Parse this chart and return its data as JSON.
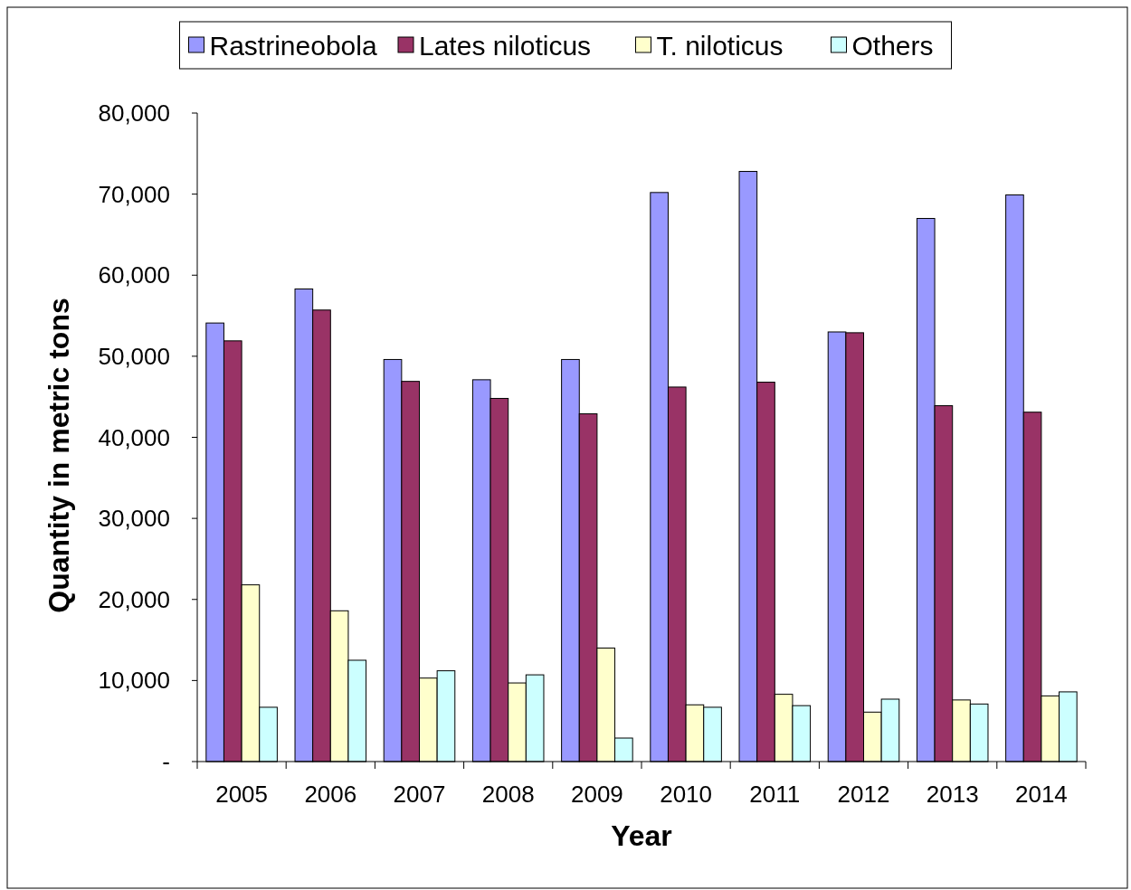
{
  "chart_data": {
    "type": "bar",
    "xlabel": "Year",
    "ylabel": "Quantity in metric tons",
    "categories": [
      "2005",
      "2006",
      "2007",
      "2008",
      "2009",
      "2010",
      "2011",
      "2012",
      "2013",
      "2014"
    ],
    "series": [
      {
        "name": "Rastrineobola",
        "color": "#9999ff",
        "values": [
          54100,
          58300,
          49600,
          47100,
          49600,
          70200,
          72800,
          53000,
          67000,
          69900
        ]
      },
      {
        "name": "Lates niloticus",
        "color": "#993366",
        "values": [
          51900,
          55700,
          46900,
          44800,
          42900,
          46200,
          46800,
          52900,
          43900,
          43100
        ]
      },
      {
        "name": "T. niloticus",
        "color": "#ffffcc",
        "values": [
          21800,
          18600,
          10300,
          9700,
          14000,
          7000,
          8300,
          6100,
          7600,
          8100
        ]
      },
      {
        "name": "Others",
        "color": "#ccffff",
        "values": [
          6700,
          12500,
          11200,
          10700,
          2900,
          6700,
          6900,
          7700,
          7100,
          8600
        ]
      }
    ],
    "ylim": [
      0,
      80000
    ],
    "yticks": [
      {
        "value": 0,
        "label": "-"
      },
      {
        "value": 10000,
        "label": "10,000"
      },
      {
        "value": 20000,
        "label": "20,000"
      },
      {
        "value": 30000,
        "label": "30,000"
      },
      {
        "value": 40000,
        "label": "40,000"
      },
      {
        "value": 50000,
        "label": "50,000"
      },
      {
        "value": 60000,
        "label": "60,000"
      },
      {
        "value": 70000,
        "label": "70,000"
      },
      {
        "value": 80000,
        "label": "80,000"
      }
    ],
    "grid": false,
    "legend": "top"
  }
}
